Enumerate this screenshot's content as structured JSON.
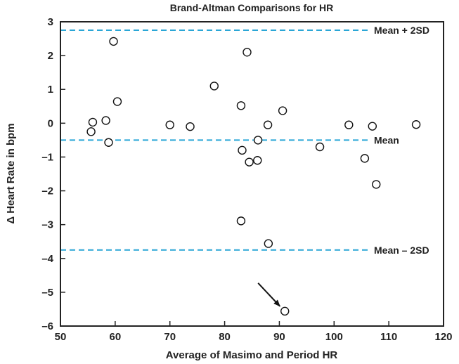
{
  "chart_data": {
    "type": "scatter",
    "title": "Brand-Altman Comparisons for HR",
    "xlabel": "Average of Masimo and Period HR",
    "ylabel": "Δ Heart Rate in bpm",
    "xlim": [
      50,
      120
    ],
    "ylim": [
      -6,
      3
    ],
    "xticks": [
      "50",
      "60",
      "70",
      "80",
      "90",
      "100",
      "110",
      "120"
    ],
    "yticks": [
      "3",
      "2",
      "1",
      "0",
      "–1",
      "–2",
      "–3",
      "–4",
      "–5",
      "–6"
    ],
    "grid": false,
    "reference_lines": [
      {
        "label": "Mean + 2SD",
        "y": 2.75,
        "color": "#2aa6d6"
      },
      {
        "label": "Mean",
        "y": -0.5,
        "color": "#2aa6d6"
      },
      {
        "label": "Mean – 2SD",
        "y": -3.75,
        "color": "#2aa6d6"
      }
    ],
    "points": [
      {
        "x": 55.6,
        "y": -0.25
      },
      {
        "x": 55.9,
        "y": 0.03
      },
      {
        "x": 58.3,
        "y": 0.08
      },
      {
        "x": 58.8,
        "y": -0.57
      },
      {
        "x": 59.7,
        "y": 2.42
      },
      {
        "x": 60.4,
        "y": 0.64
      },
      {
        "x": 70.0,
        "y": -0.05
      },
      {
        "x": 73.7,
        "y": -0.1
      },
      {
        "x": 78.1,
        "y": 1.1
      },
      {
        "x": 83.0,
        "y": 0.52
      },
      {
        "x": 83.2,
        "y": -0.8
      },
      {
        "x": 83.0,
        "y": -2.89
      },
      {
        "x": 84.1,
        "y": 2.1
      },
      {
        "x": 84.5,
        "y": -1.15
      },
      {
        "x": 86.0,
        "y": -1.1
      },
      {
        "x": 86.1,
        "y": -0.5
      },
      {
        "x": 87.9,
        "y": -0.05
      },
      {
        "x": 88.0,
        "y": -3.56
      },
      {
        "x": 90.6,
        "y": 0.37
      },
      {
        "x": 91.0,
        "y": -5.56
      },
      {
        "x": 97.4,
        "y": -0.7
      },
      {
        "x": 102.7,
        "y": -0.05
      },
      {
        "x": 105.6,
        "y": -1.04
      },
      {
        "x": 107.0,
        "y": -0.09
      },
      {
        "x": 107.7,
        "y": -1.81
      },
      {
        "x": 115.0,
        "y": -0.04
      }
    ],
    "annotations": [
      {
        "type": "arrow",
        "target_index": 19
      }
    ]
  }
}
